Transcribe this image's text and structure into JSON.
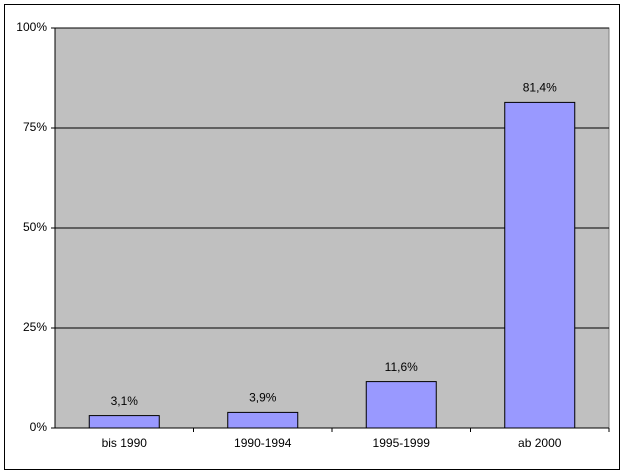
{
  "chart_data": {
    "type": "bar",
    "categories": [
      "bis 1990",
      "1990-1994",
      "1995-1999",
      "ab 2000"
    ],
    "values": [
      3.1,
      3.9,
      11.6,
      81.4
    ],
    "value_labels": [
      "3,1%",
      "3,9%",
      "11,6%",
      "81,4%"
    ],
    "color": "#9999ff",
    "ylim": [
      0,
      100
    ],
    "yticks": [
      {
        "value": 0,
        "label": "0%"
      },
      {
        "value": 25,
        "label": "25%"
      },
      {
        "value": 50,
        "label": "50%"
      },
      {
        "value": 75,
        "label": "75%"
      },
      {
        "value": 100,
        "label": "100%"
      }
    ],
    "grid": true
  }
}
